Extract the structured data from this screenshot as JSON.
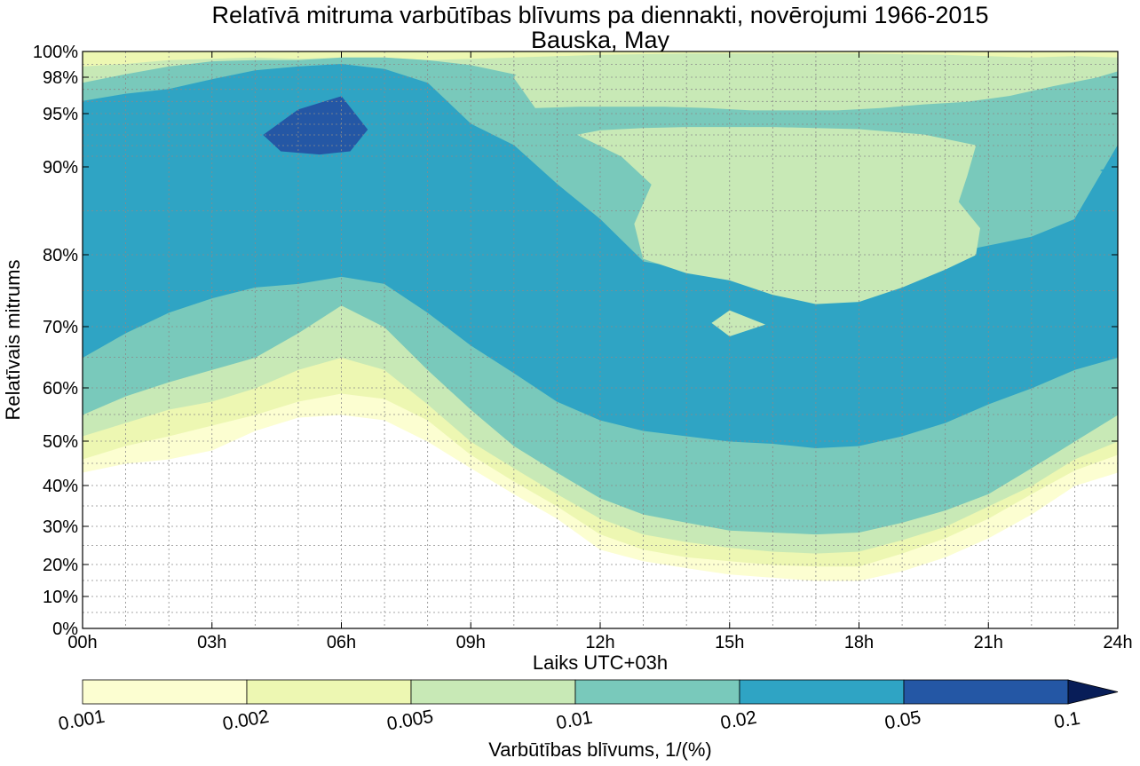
{
  "chart_data": {
    "type": "contour",
    "title": "Relatīvā mitruma varbūtības blīvums pa diennakti, novērojumi 1966-2015",
    "subtitle": "Bauska, May",
    "xlabel": "Laiks UTC+03h",
    "ylabel": "Relatīvais mitrums",
    "xlim": [
      0,
      24
    ],
    "ylim_label_scale": "nonlinear (square-root like)",
    "x_ticks": [
      "00h",
      "03h",
      "06h",
      "09h",
      "12h",
      "15h",
      "18h",
      "21h",
      "24h"
    ],
    "y_ticks": [
      "0%",
      "10%",
      "20%",
      "30%",
      "40%",
      "50%",
      "60%",
      "70%",
      "80%",
      "90%",
      "95%",
      "98%",
      "100%"
    ],
    "grid": true,
    "colorbar": {
      "label": "Varbūtības blīvums, 1/(%)",
      "levels": [
        "0.001",
        "0.002",
        "0.005",
        "0.01",
        "0.02",
        "0.05",
        "0.1"
      ],
      "colors": [
        "#fcfed1",
        "#edf7b2",
        "#c8e9b6",
        "#79c9bb",
        "#2fa4c4",
        "#2457a5",
        "#081d58"
      ],
      "extend": "max"
    },
    "bands": [
      {
        "level": "0.001",
        "upper": [
          [
            0,
            100
          ],
          [
            3,
            100
          ],
          [
            6,
            100
          ],
          [
            9,
            100
          ],
          [
            12,
            100
          ],
          [
            15,
            100
          ],
          [
            18,
            100
          ],
          [
            21,
            100
          ],
          [
            24,
            100
          ]
        ],
        "lower": [
          [
            0,
            43
          ],
          [
            1,
            45
          ],
          [
            2,
            46
          ],
          [
            3,
            48
          ],
          [
            4,
            52
          ],
          [
            5,
            54.5
          ],
          [
            6,
            55
          ],
          [
            7,
            54
          ],
          [
            8,
            50
          ],
          [
            9,
            44
          ],
          [
            10,
            38
          ],
          [
            11,
            32
          ],
          [
            12,
            24
          ],
          [
            13,
            21
          ],
          [
            14,
            19
          ],
          [
            15,
            17
          ],
          [
            16,
            16
          ],
          [
            17,
            15
          ],
          [
            18,
            15
          ],
          [
            19,
            18
          ],
          [
            20,
            22
          ],
          [
            21,
            27
          ],
          [
            22,
            33
          ],
          [
            23,
            40
          ],
          [
            24,
            43
          ]
        ]
      },
      {
        "level": "0.002",
        "upper": [
          [
            0,
            100
          ],
          [
            3,
            100
          ],
          [
            6,
            100
          ],
          [
            9,
            100
          ],
          [
            12,
            100
          ],
          [
            15,
            100
          ],
          [
            18,
            100
          ],
          [
            21,
            100
          ],
          [
            24,
            100
          ]
        ],
        "lower": [
          [
            0,
            46
          ],
          [
            1,
            49
          ],
          [
            2,
            51
          ],
          [
            3,
            53
          ],
          [
            4,
            55
          ],
          [
            5,
            57.5
          ],
          [
            6,
            59
          ],
          [
            7,
            58
          ],
          [
            8,
            54
          ],
          [
            9,
            47
          ],
          [
            10,
            41
          ],
          [
            11,
            35
          ],
          [
            12,
            28
          ],
          [
            13,
            24
          ],
          [
            14,
            22
          ],
          [
            15,
            21
          ],
          [
            16,
            20
          ],
          [
            17,
            19.5
          ],
          [
            18,
            19.5
          ],
          [
            19,
            23
          ],
          [
            20,
            27
          ],
          [
            21,
            32
          ],
          [
            22,
            38
          ],
          [
            23,
            43.5
          ],
          [
            24,
            47
          ]
        ]
      },
      {
        "level": "0.005",
        "upper": [
          [
            0,
            98.8
          ],
          [
            1,
            99
          ],
          [
            2,
            99.3
          ],
          [
            3,
            99.4
          ],
          [
            4,
            99.5
          ],
          [
            5,
            99.4
          ],
          [
            6,
            99.5
          ],
          [
            7,
            99.5
          ],
          [
            8,
            99.3
          ],
          [
            9,
            99.4
          ],
          [
            10,
            99.5
          ],
          [
            11,
            99.6
          ],
          [
            12,
            99.6
          ],
          [
            13,
            99.7
          ],
          [
            14,
            99.7
          ],
          [
            15,
            99.7
          ],
          [
            16,
            99.6
          ],
          [
            17,
            99.6
          ],
          [
            18,
            99.6
          ],
          [
            19,
            99.6
          ],
          [
            20,
            99.4
          ],
          [
            21,
            99.2
          ],
          [
            22,
            99.1
          ],
          [
            23,
            99.2
          ],
          [
            24,
            99.5
          ]
        ],
        "lower": [
          [
            0,
            51
          ],
          [
            1,
            53.5
          ],
          [
            2,
            56
          ],
          [
            3,
            57.5
          ],
          [
            4,
            60
          ],
          [
            5,
            63
          ],
          [
            6,
            65
          ],
          [
            7,
            63
          ],
          [
            8,
            57
          ],
          [
            9,
            50
          ],
          [
            10,
            44
          ],
          [
            11,
            38
          ],
          [
            12,
            32
          ],
          [
            13,
            28
          ],
          [
            14,
            26
          ],
          [
            15,
            24.5
          ],
          [
            16,
            23.5
          ],
          [
            17,
            23
          ],
          [
            18,
            23.5
          ],
          [
            19,
            26.5
          ],
          [
            20,
            30
          ],
          [
            21,
            35
          ],
          [
            22,
            40
          ],
          [
            23,
            46
          ],
          [
            24,
            50
          ]
        ]
      },
      {
        "level": "0.01",
        "upper": [
          [
            0,
            97.5
          ],
          [
            1,
            98.2
          ],
          [
            2,
            98.8
          ],
          [
            3,
            99.2
          ],
          [
            4,
            99.3
          ],
          [
            5,
            99.3
          ],
          [
            6,
            99.5
          ],
          [
            7,
            99.5
          ],
          [
            8,
            99.3
          ],
          [
            9,
            98.9
          ],
          [
            10,
            98.2
          ],
          [
            11,
            97.4
          ],
          [
            12,
            96.5
          ],
          [
            13,
            96
          ],
          [
            14,
            95.8
          ],
          [
            15,
            95.7
          ],
          [
            16,
            95.6
          ],
          [
            17,
            95.5
          ],
          [
            18,
            95.5
          ],
          [
            19,
            95.8
          ],
          [
            20,
            96.5
          ],
          [
            21,
            97.2
          ],
          [
            22,
            98
          ],
          [
            23,
            98.5
          ],
          [
            24,
            99
          ]
        ],
        "lower": [
          [
            0,
            55
          ],
          [
            1,
            58.5
          ],
          [
            2,
            61
          ],
          [
            3,
            63
          ],
          [
            4,
            65
          ],
          [
            5,
            69
          ],
          [
            6,
            73
          ],
          [
            7,
            70
          ],
          [
            8,
            63
          ],
          [
            9,
            56
          ],
          [
            10,
            49
          ],
          [
            11,
            43
          ],
          [
            12,
            37
          ],
          [
            13,
            33
          ],
          [
            14,
            31
          ],
          [
            15,
            29
          ],
          [
            16,
            28.5
          ],
          [
            17,
            28
          ],
          [
            18,
            28.5
          ],
          [
            19,
            31
          ],
          [
            20,
            34
          ],
          [
            21,
            38
          ],
          [
            22,
            44
          ],
          [
            23,
            50
          ],
          [
            24,
            55
          ]
        ]
      },
      {
        "level": "0.02",
        "upper": [
          [
            0,
            96
          ],
          [
            1,
            96.6
          ],
          [
            2,
            97
          ],
          [
            3,
            97.8
          ],
          [
            4,
            98.5
          ],
          [
            5,
            98.8
          ],
          [
            6,
            99
          ],
          [
            7,
            98.6
          ],
          [
            8,
            97.5
          ],
          [
            9,
            94
          ],
          [
            10,
            92
          ],
          [
            11,
            88
          ],
          [
            12,
            84
          ],
          [
            13,
            79
          ],
          [
            14,
            78
          ],
          [
            15,
            77.5
          ],
          [
            16,
            76
          ],
          [
            17,
            75.2
          ],
          [
            18,
            75.5
          ],
          [
            19,
            77
          ],
          [
            20,
            80
          ],
          [
            21,
            81
          ],
          [
            22,
            82
          ],
          [
            23,
            84
          ],
          [
            24,
            92
          ]
        ],
        "lower": [
          [
            0,
            65
          ],
          [
            1,
            69
          ],
          [
            2,
            72
          ],
          [
            3,
            74
          ],
          [
            4,
            75.5
          ],
          [
            5,
            76
          ],
          [
            6,
            77
          ],
          [
            7,
            76
          ],
          [
            8,
            72
          ],
          [
            9,
            67
          ],
          [
            10,
            62.5
          ],
          [
            11,
            57.5
          ],
          [
            12,
            54
          ],
          [
            13,
            52
          ],
          [
            14,
            51
          ],
          [
            15,
            50
          ],
          [
            16,
            49.5
          ],
          [
            17,
            48.5
          ],
          [
            18,
            49
          ],
          [
            19,
            51
          ],
          [
            20,
            53.5
          ],
          [
            21,
            57
          ],
          [
            22,
            60
          ],
          [
            23,
            63
          ],
          [
            24,
            65
          ]
        ]
      },
      {
        "level": "0.05",
        "upper": [
          [
            5,
            95.3
          ],
          [
            6,
            96.4
          ],
          [
            6.6,
            93.5
          ],
          [
            6.2,
            91.5
          ],
          [
            5.5,
            91.2
          ],
          [
            4.6,
            91.5
          ],
          [
            4.2,
            93
          ]
        ],
        "lower": []
      }
    ],
    "inner_regions": [
      {
        "level": "0.005",
        "points": [
          [
            10.5,
            95.5
          ],
          [
            11.5,
            95.6
          ],
          [
            12.5,
            95.6
          ],
          [
            13.5,
            95.6
          ],
          [
            14.5,
            95.5
          ],
          [
            15.5,
            95.3
          ],
          [
            16.5,
            95.3
          ],
          [
            17.5,
            95.3
          ],
          [
            18.5,
            95.5
          ],
          [
            19.5,
            95.8
          ],
          [
            20.5,
            96
          ],
          [
            21.5,
            96.5
          ],
          [
            22.5,
            97.3
          ],
          [
            23.5,
            98
          ],
          [
            24,
            98.5
          ],
          [
            24,
            99.5
          ],
          [
            23,
            99.6
          ],
          [
            22,
            99.5
          ],
          [
            21,
            99.6
          ],
          [
            20,
            99.7
          ],
          [
            18,
            99.8
          ],
          [
            16,
            99.8
          ],
          [
            14,
            99.8
          ],
          [
            12,
            99.7
          ],
          [
            11,
            99.6
          ],
          [
            10.5,
            99.3
          ],
          [
            10,
            98
          ]
        ]
      },
      {
        "level": "0.005",
        "points": [
          [
            11.5,
            93
          ],
          [
            12.5,
            91
          ],
          [
            13.2,
            88
          ],
          [
            12.8,
            83.5
          ],
          [
            13,
            79.5
          ],
          [
            14,
            77.5
          ],
          [
            15,
            76.5
          ],
          [
            16,
            74.5
          ],
          [
            17,
            73.2
          ],
          [
            18,
            73.5
          ],
          [
            19,
            75.5
          ],
          [
            20,
            78
          ],
          [
            20.7,
            80
          ],
          [
            20.8,
            83
          ],
          [
            20.3,
            86
          ],
          [
            20.5,
            89
          ],
          [
            20.7,
            92
          ],
          [
            19.5,
            93
          ],
          [
            18,
            93.5
          ],
          [
            16,
            93.7
          ],
          [
            14,
            93.7
          ],
          [
            13,
            93.6
          ],
          [
            12,
            93.4
          ]
        ]
      },
      {
        "level": "0.005",
        "points": [
          [
            14.6,
            70.5
          ],
          [
            15,
            72.2
          ],
          [
            15.8,
            70.3
          ],
          [
            15,
            68.5
          ]
        ]
      },
      {
        "level": "0.02",
        "points": [
          [
            24,
            90
          ],
          [
            23.6,
            89.6
          ],
          [
            24,
            89.3
          ]
        ]
      }
    ]
  }
}
